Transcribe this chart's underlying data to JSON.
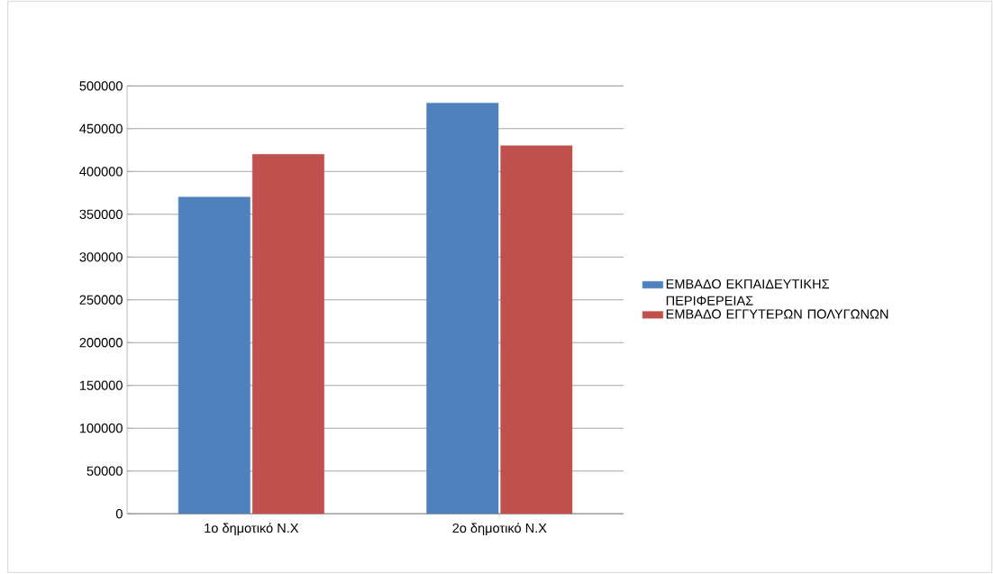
{
  "chart_data": {
    "type": "bar",
    "categories": [
      "1ο δημοτικό Ν.Χ",
      "2ο δημοτικό Ν.Χ"
    ],
    "series": [
      {
        "name": "ΕΜΒΑΔΟ ΕΚΠΑΙΔΕΥΤΙΚΗΣ ΠΕΡΙΦΕΡΕΙΑΣ",
        "color": "#4f81bd",
        "values": [
          370000,
          480000
        ]
      },
      {
        "name": "ΕΜΒΑΔΟ ΕΓΓΥΤΕΡΩΝ ΠΟΛΥΓΩΝΩΝ",
        "color": "#c0504d",
        "values": [
          420000,
          430000
        ]
      }
    ],
    "ylim": [
      0,
      500000
    ],
    "yticks": [
      0,
      50000,
      100000,
      150000,
      200000,
      250000,
      300000,
      350000,
      400000,
      450000,
      500000
    ],
    "grid": "y",
    "legend": "right"
  }
}
